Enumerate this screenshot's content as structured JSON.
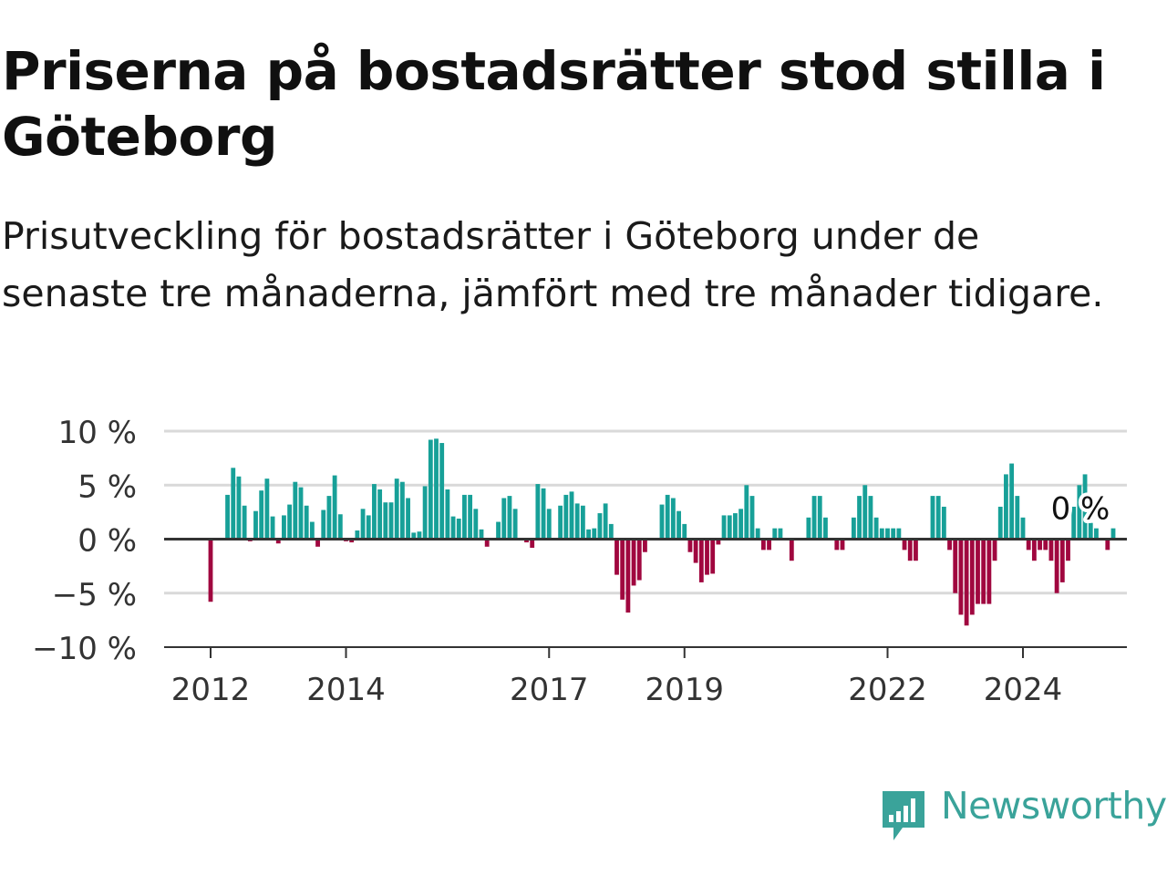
{
  "title": "Priserna på bostadsrätter stod stilla i Göteborg",
  "subtitle": "Prisutveckling för bostadsrätter i Göteborg under de senaste tre månaderna, jämfört med tre månader tidigare.",
  "brand": {
    "name": "Newsworthy",
    "color": "#3aa39a"
  },
  "colors": {
    "positive": "#17a098",
    "negative": "#a0073f",
    "grid": "#d9d9d9",
    "zero_line": "#333333"
  },
  "chart_data": {
    "type": "bar",
    "x_start": "2012-01",
    "frequency": "monthly",
    "ylabel": "",
    "xlabel": "",
    "ylim": [
      -10,
      10
    ],
    "y_ticks": [
      10,
      5,
      0,
      -5,
      -10
    ],
    "y_tick_labels": [
      "10 %",
      "5 %",
      "0 %",
      "−5 %",
      "−10 %"
    ],
    "x_ticks": [
      "2012",
      "2014",
      "2017",
      "2019",
      "2022",
      "2024"
    ],
    "annotation": {
      "text": "0 %",
      "at": "2024-06"
    },
    "values": [
      -5.8,
      0,
      0,
      4.1,
      6.6,
      5.8,
      3.1,
      -0.2,
      2.6,
      4.5,
      5.6,
      2.1,
      -0.4,
      2.2,
      3.2,
      5.3,
      4.8,
      3.1,
      1.6,
      -0.7,
      2.7,
      4.0,
      5.9,
      2.3,
      -0.2,
      -0.3,
      0.8,
      2.8,
      2.2,
      5.1,
      4.6,
      3.4,
      3.4,
      5.6,
      5.3,
      3.8,
      0.6,
      0.7,
      4.9,
      9.2,
      9.3,
      8.9,
      4.6,
      2.1,
      1.9,
      4.1,
      4.1,
      2.8,
      0.9,
      -0.7,
      0,
      1.6,
      3.8,
      4.0,
      2.8,
      0,
      -0.3,
      -0.8,
      5.1,
      4.7,
      2.8,
      0,
      3.1,
      4.1,
      4.4,
      3.3,
      3.1,
      0.9,
      1.0,
      2.4,
      3.3,
      1.4,
      -3.3,
      -5.6,
      -6.8,
      -4.3,
      -3.8,
      -1.2,
      0,
      0,
      3.2,
      4.1,
      3.8,
      2.6,
      1.4,
      -1.2,
      -2.2,
      -4.0,
      -3.3,
      -3.2,
      -0.5,
      2.2,
      2.2,
      2.4,
      2.8,
      5.0,
      4.0,
      1.0,
      -1.0,
      -1.0,
      1.0,
      1.0,
      0,
      -2.0,
      0,
      0,
      2.0,
      4.0,
      4.0,
      2.0,
      0,
      -1.0,
      -1.0,
      0,
      2.0,
      4.0,
      5.0,
      4.0,
      2.0,
      1.0,
      1.0,
      1.0,
      1.0,
      -1.0,
      -2.0,
      -2.0,
      0,
      0,
      4.0,
      4.0,
      3.0,
      -1.0,
      -5.0,
      -7.0,
      -8.0,
      -7.0,
      -6.0,
      -6.0,
      -6.0,
      -2.0,
      3.0,
      6.0,
      7.0,
      4.0,
      2.0,
      -1.0,
      -2.0,
      -1.0,
      -1.0,
      -2.0,
      -5.0,
      -4.0,
      -2.0,
      3.0,
      5.0,
      6.0,
      1.5,
      1.0,
      0,
      -1.0,
      1.0
    ]
  }
}
